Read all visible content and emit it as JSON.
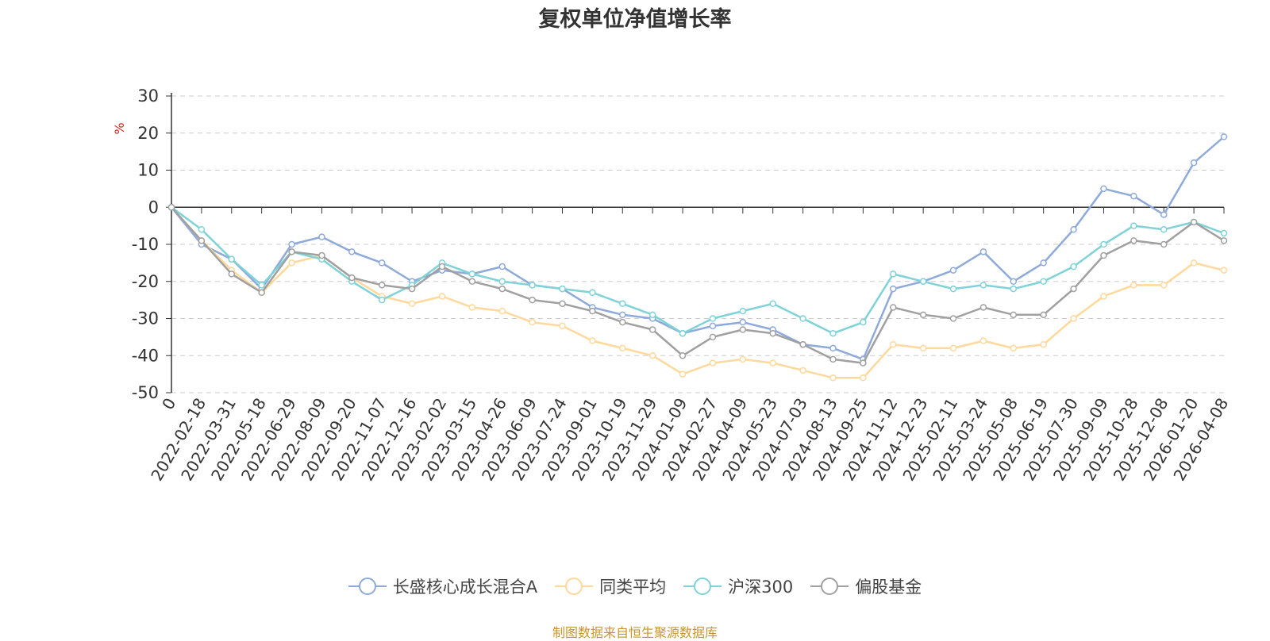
{
  "chart_data": {
    "type": "line",
    "title": "复权单位净值增长率",
    "ylabel": "%",
    "xlabel": "",
    "ylim": [
      -50,
      30
    ],
    "yticks": [
      30,
      20,
      10,
      0,
      -10,
      -20,
      -30,
      -40,
      -50
    ],
    "grid": true,
    "legend_position": "bottom",
    "x_tick_labels": [
      "0",
      "2022-02-18",
      "2022-03-31",
      "2022-05-18",
      "2022-06-29",
      "2022-08-09",
      "2022-09-20",
      "2022-11-07",
      "2022-12-16",
      "2023-02-02",
      "2023-03-15",
      "2023-04-26",
      "2023-06-09",
      "2023-07-24",
      "2023-09-01",
      "2023-10-19",
      "2023-11-29",
      "2024-01-09",
      "2024-02-27",
      "2024-04-09",
      "2024-05-23",
      "2024-07-03",
      "2024-08-13",
      "2024-09-25",
      "2024-11-12",
      "2024-12-23",
      "2025-02-11",
      "2025-03-24",
      "2025-05-08",
      "2025-06-19",
      "2025-07-30",
      "2025-09-09",
      "2025-10-28",
      "2025-12-08",
      "2026-01-20",
      "2026-04-08"
    ],
    "x": [
      0,
      1,
      2,
      3,
      4,
      5,
      6,
      7,
      8,
      9,
      10,
      11,
      12,
      13,
      14,
      15,
      16,
      17,
      18,
      19,
      20,
      21,
      22,
      23,
      24,
      25,
      26,
      27,
      28,
      29,
      30,
      31,
      32,
      33,
      34,
      35
    ],
    "series": [
      {
        "name": "长盛核心成长混合A",
        "color": "#8eaadb",
        "values": [
          0,
          -10,
          -14,
          -22,
          -10,
          -8,
          -12,
          -15,
          -20,
          -17,
          -18,
          -16,
          -21,
          -22,
          -27,
          -29,
          -30,
          -34,
          -32,
          -31,
          -33,
          -37,
          -38,
          -41,
          -22,
          -20,
          -17,
          -12,
          -20,
          -15,
          -6,
          5,
          3,
          -2,
          12,
          19
        ]
      },
      {
        "name": "同类平均",
        "color": "#ffd89c",
        "values": [
          0,
          -9,
          -17,
          -23,
          -15,
          -13,
          -19,
          -24,
          -26,
          -24,
          -27,
          -28,
          -31,
          -32,
          -36,
          -38,
          -40,
          -45,
          -42,
          -41,
          -42,
          -44,
          -46,
          -46,
          -37,
          -38,
          -38,
          -36,
          -38,
          -37,
          -30,
          -24,
          -21,
          -21,
          -15,
          -17
        ]
      },
      {
        "name": "沪深300",
        "color": "#7fd3d8",
        "values": [
          0,
          -6,
          -14,
          -21,
          -12,
          -14,
          -20,
          -25,
          -21,
          -15,
          -18,
          -20,
          -21,
          -22,
          -23,
          -26,
          -29,
          -34,
          -30,
          -28,
          -26,
          -30,
          -34,
          -31,
          -18,
          -20,
          -22,
          -21,
          -22,
          -20,
          -16,
          -10,
          -5,
          -6,
          -4,
          -7
        ]
      },
      {
        "name": "偏股基金",
        "color": "#a0a0a0",
        "values": [
          0,
          -9,
          -18,
          -23,
          -12,
          -13,
          -19,
          -21,
          -22,
          -16,
          -20,
          -22,
          -25,
          -26,
          -28,
          -31,
          -33,
          -40,
          -35,
          -33,
          -34,
          -37,
          -41,
          -42,
          -27,
          -29,
          -30,
          -27,
          -29,
          -29,
          -22,
          -13,
          -9,
          -10,
          -4,
          -9
        ]
      }
    ]
  },
  "source_text": "制图数据来自恒生聚源数据库"
}
